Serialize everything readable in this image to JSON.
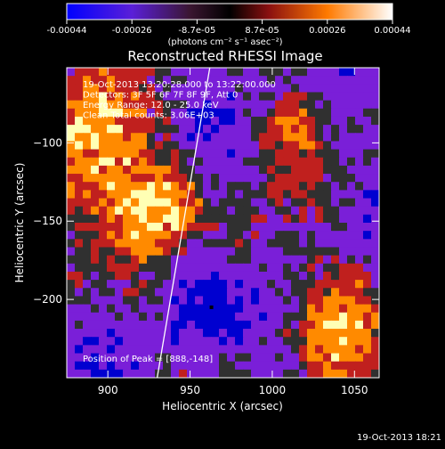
{
  "colorbar": {
    "ticks": [
      "-0.00044",
      "-0.00026",
      "-8.7e-05",
      "8.7e-05",
      "0.00026",
      "0.00044"
    ],
    "units": "(photons cm⁻² s⁻¹ asec⁻²)"
  },
  "chart_data": {
    "type": "heatmap",
    "title": "Reconstructed RHESSI Image",
    "xlabel": "Heliocentric X (arcsec)",
    "ylabel": "Heliocentric Y (arcsec)",
    "xlim": [
      875,
      1065
    ],
    "ylim": [
      -250,
      -52
    ],
    "xticks": [
      900,
      950,
      1000,
      1050
    ],
    "yticks": [
      -100,
      -150,
      -200
    ],
    "annotations": [
      "19-Oct-2013 13:20:28.000 to 13:22:00.000",
      "Detectors: 3F 5F 6F 7F 8F 9F, Att 0",
      "Energy Range: 12.0 - 25.0 keV",
      "Clean     Total counts: 3.06E+03"
    ],
    "peak_label": "Position of Peak = [888,-148]",
    "limb_line": {
      "x_top": 962,
      "x_bottom": 930
    },
    "min_marker": {
      "x": 963,
      "y": -205
    },
    "colormap": [
      "#0000d0",
      "#7a1fd8",
      "#303030",
      "#c0201e",
      "#ff8a00",
      "#ffffb4"
    ]
  },
  "footer": {
    "timestamp": "19-Oct-2013 18:21"
  }
}
